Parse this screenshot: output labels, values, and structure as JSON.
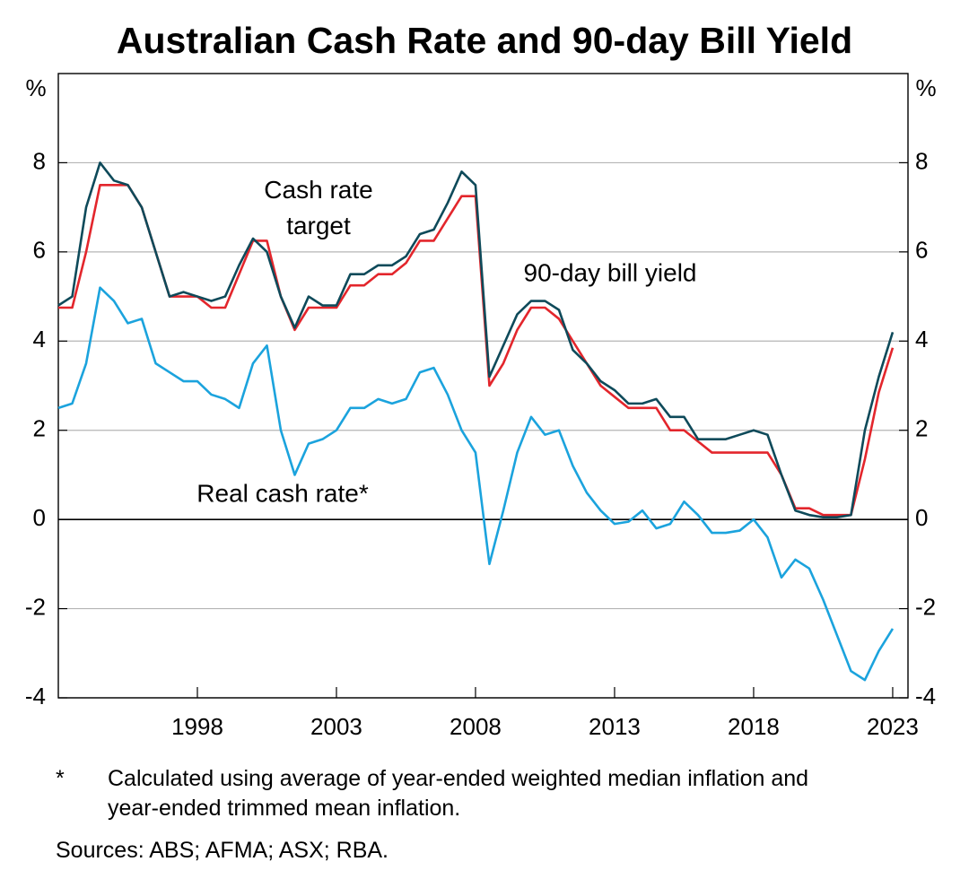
{
  "chart_data": {
    "type": "line",
    "title": "Australian Cash Rate and 90-day Bill Yield",
    "ylabel": "%",
    "y2label": "%",
    "x": [
      1993.0,
      1993.5,
      1994.0,
      1994.5,
      1995.0,
      1995.5,
      1996.0,
      1996.5,
      1997.0,
      1997.5,
      1998.0,
      1998.5,
      1999.0,
      1999.5,
      2000.0,
      2000.5,
      2001.0,
      2001.5,
      2002.0,
      2002.5,
      2003.0,
      2003.5,
      2004.0,
      2004.5,
      2005.0,
      2005.5,
      2006.0,
      2006.5,
      2007.0,
      2007.5,
      2008.0,
      2008.5,
      2009.0,
      2009.5,
      2010.0,
      2010.5,
      2011.0,
      2011.5,
      2012.0,
      2012.5,
      2013.0,
      2013.5,
      2014.0,
      2014.5,
      2015.0,
      2015.5,
      2016.0,
      2016.5,
      2017.0,
      2017.5,
      2018.0,
      2018.5,
      2019.0,
      2019.5,
      2020.0,
      2020.5,
      2021.0,
      2021.5,
      2022.0,
      2022.5,
      2023.0
    ],
    "series": [
      {
        "name": "Cash rate target",
        "color": "#e3262c",
        "values": [
          4.75,
          4.75,
          6.0,
          7.5,
          7.5,
          7.5,
          7.0,
          6.0,
          5.0,
          5.0,
          5.0,
          4.75,
          4.75,
          5.5,
          6.25,
          6.25,
          5.0,
          4.25,
          4.75,
          4.75,
          4.75,
          5.25,
          5.25,
          5.5,
          5.5,
          5.75,
          6.25,
          6.25,
          6.75,
          7.25,
          7.25,
          3.0,
          3.5,
          4.25,
          4.75,
          4.75,
          4.5,
          4.0,
          3.5,
          3.0,
          2.75,
          2.5,
          2.5,
          2.5,
          2.0,
          2.0,
          1.75,
          1.5,
          1.5,
          1.5,
          1.5,
          1.5,
          1.0,
          0.25,
          0.25,
          0.1,
          0.1,
          0.1,
          1.35,
          2.85,
          3.85
        ]
      },
      {
        "name": "90-day bill yield",
        "color": "#0e4a5a",
        "values": [
          4.8,
          5.0,
          7.0,
          8.0,
          7.6,
          7.5,
          7.0,
          6.0,
          5.0,
          5.1,
          5.0,
          4.9,
          5.0,
          5.7,
          6.3,
          6.0,
          5.0,
          4.3,
          5.0,
          4.8,
          4.8,
          5.5,
          5.5,
          5.7,
          5.7,
          5.9,
          6.4,
          6.5,
          7.1,
          7.8,
          7.5,
          3.2,
          3.9,
          4.6,
          4.9,
          4.9,
          4.7,
          3.8,
          3.5,
          3.1,
          2.9,
          2.6,
          2.6,
          2.7,
          2.3,
          2.3,
          1.8,
          1.8,
          1.8,
          1.9,
          2.0,
          1.9,
          1.0,
          0.2,
          0.1,
          0.05,
          0.05,
          0.1,
          2.0,
          3.2,
          4.2
        ]
      },
      {
        "name": "Real cash rate*",
        "color": "#1ba3dd",
        "values": [
          2.5,
          2.6,
          3.5,
          5.2,
          4.9,
          4.4,
          4.5,
          3.5,
          3.3,
          3.1,
          3.1,
          2.8,
          2.7,
          2.5,
          3.5,
          3.9,
          2.0,
          1.0,
          1.7,
          1.8,
          2.0,
          2.5,
          2.5,
          2.7,
          2.6,
          2.7,
          3.3,
          3.4,
          2.8,
          2.0,
          1.5,
          -1.0,
          0.2,
          1.5,
          2.3,
          1.9,
          2.0,
          1.2,
          0.6,
          0.2,
          -0.1,
          -0.05,
          0.2,
          -0.2,
          -0.1,
          0.4,
          0.1,
          -0.3,
          -0.3,
          -0.25,
          0.0,
          -0.4,
          -1.3,
          -0.9,
          -1.1,
          -1.8,
          -2.6,
          -3.4,
          -3.6,
          -2.95,
          -2.45
        ]
      }
    ],
    "xlim": [
      1993.0,
      2023.55
    ],
    "xticks": [
      1998,
      2003,
      2008,
      2013,
      2018,
      2023
    ],
    "ylim": [
      -4,
      10
    ],
    "yticks": [
      -4,
      -2,
      0,
      2,
      4,
      6,
      8
    ],
    "y2lim": [
      -4,
      10
    ],
    "y2ticks": [
      -4,
      -2,
      0,
      2,
      4,
      6,
      8
    ],
    "grid": true,
    "footnote_marker": "*",
    "footnote": "Calculated using average of year-ended weighted median inflation and year-ended trimmed mean inflation.",
    "sources": "Sources: ABS; AFMA; ASX; RBA."
  }
}
